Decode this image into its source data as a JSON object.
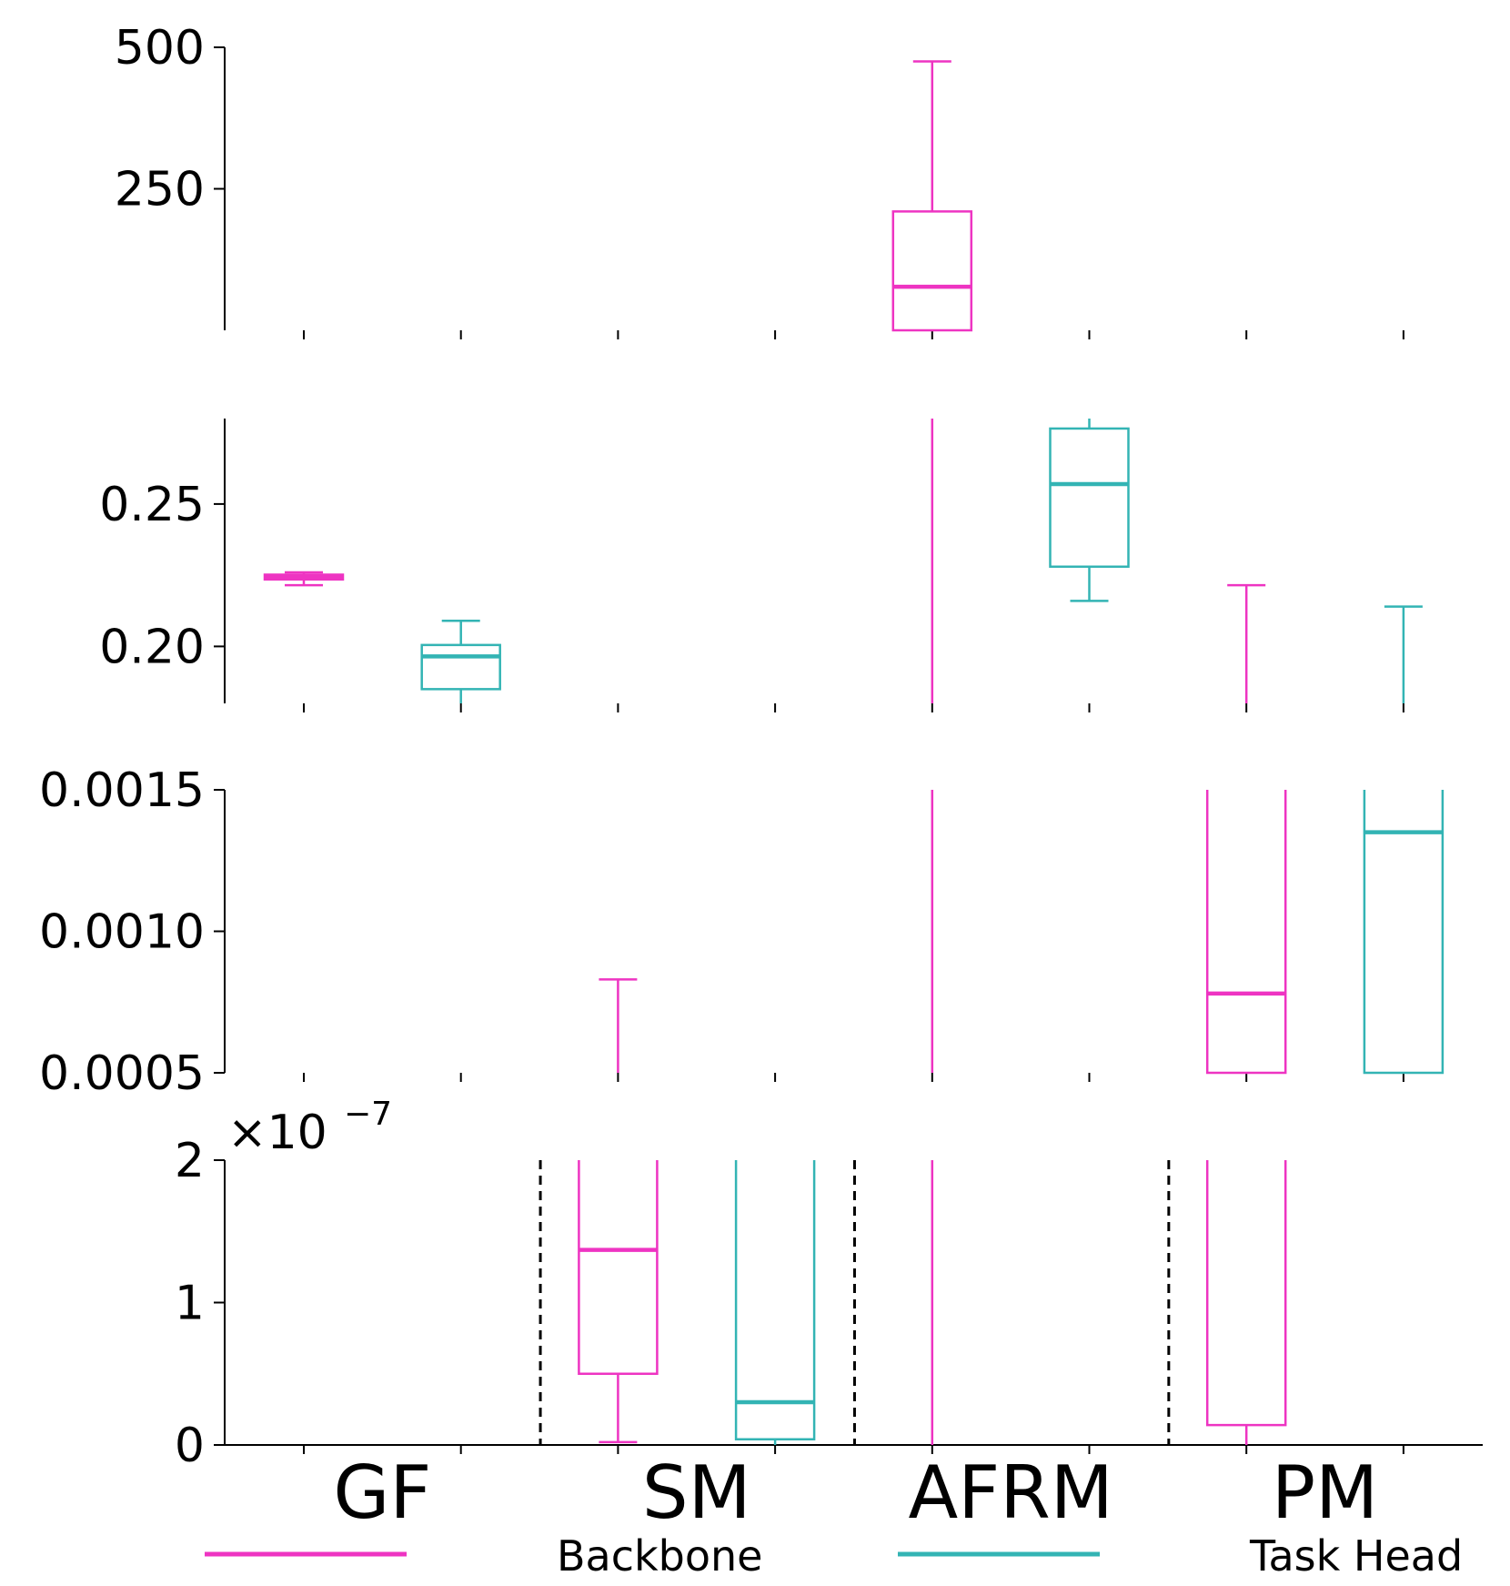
{
  "chart_data": {
    "type": "box",
    "categories": [
      "GF",
      "SM",
      "AFRM",
      "PM"
    ],
    "series_names": [
      "Backbone",
      "Task Head"
    ],
    "colors": {
      "Backbone": "#ee34c2",
      "Task Head": "#33b4b4"
    },
    "legend": {
      "placement": "bottom",
      "entries": [
        {
          "name": "Backbone",
          "label": "Backbone",
          "color": "#ee34c2"
        },
        {
          "name": "Task Head",
          "label": "Task Head",
          "color": "#33b4b4"
        }
      ]
    },
    "panels": [
      {
        "name": "panel-1",
        "ylim": [
          0,
          500
        ],
        "yticks": [
          250,
          500
        ],
        "ytick_labels": [
          "250",
          "500"
        ],
        "boxes": [
          {
            "category": "AFRM",
            "series": "Backbone",
            "whislo": 0,
            "q1": 0,
            "med": 77,
            "q3": 210,
            "whishi": 475
          }
        ]
      },
      {
        "name": "panel-2",
        "ylim": [
          0.18,
          0.28
        ],
        "yticks": [
          0.2,
          0.25
        ],
        "ytick_labels": [
          "0.20",
          "0.25"
        ],
        "boxes": [
          {
            "category": "GF",
            "series": "Backbone",
            "whislo": 0.2215,
            "q1": 0.2235,
            "med": 0.2245,
            "q3": 0.2252,
            "whishi": 0.226
          },
          {
            "category": "GF",
            "series": "Task Head",
            "whislo": 0.18,
            "q1": 0.185,
            "med": 0.1965,
            "q3": 0.2005,
            "whishi": 0.209
          },
          {
            "category": "AFRM",
            "series": "Backbone",
            "whislo": 0.18,
            "q1": 0.18,
            "med": 0.18,
            "q3": 0.28,
            "whishi": 0.28
          },
          {
            "category": "AFRM",
            "series": "Task Head",
            "whislo": 0.216,
            "q1": 0.228,
            "med": 0.257,
            "q3": 0.2765,
            "whishi": 0.28
          },
          {
            "category": "PM",
            "series": "Backbone",
            "whislo": 0.18,
            "q1": 0.18,
            "med": 0.18,
            "q3": 0.18,
            "whishi": 0.2215
          },
          {
            "category": "PM",
            "series": "Task Head",
            "whislo": 0.18,
            "q1": 0.18,
            "med": 0.18,
            "q3": 0.18,
            "whishi": 0.214
          }
        ]
      },
      {
        "name": "panel-3",
        "ylim": [
          0.0005,
          0.0015
        ],
        "yticks": [
          0.0005,
          0.001,
          0.0015
        ],
        "ytick_labels": [
          "0.0005",
          "0.0010",
          "0.0015"
        ],
        "boxes": [
          {
            "category": "SM",
            "series": "Backbone",
            "whislo": 0.0005,
            "q1": 0.0005,
            "med": 0.0005,
            "q3": 0.0005,
            "whishi": 0.00083
          },
          {
            "category": "AFRM",
            "series": "Backbone",
            "whislo": 0.0005,
            "q1": 0.0005,
            "med": 0.0005,
            "q3": 0.0015,
            "whishi": 0.0015
          },
          {
            "category": "PM",
            "series": "Backbone",
            "whislo": 0.0005,
            "q1": 0.0005,
            "med": 0.00078,
            "q3": 0.0015,
            "whishi": 0.0015
          },
          {
            "category": "PM",
            "series": "Task Head",
            "whislo": 0.0005,
            "q1": 0.0005,
            "med": 0.00135,
            "q3": 0.0015,
            "whishi": 0.0015
          }
        ]
      },
      {
        "name": "panel-4",
        "ylim": [
          0,
          2
        ],
        "yticks": [
          0,
          1,
          2
        ],
        "ytick_labels": [
          "0",
          "1",
          "2"
        ],
        "scale_label": "×10",
        "scale_exponent": "−7",
        "show_category_labels": true,
        "separators_after": [
          "GF",
          "SM",
          "AFRM"
        ],
        "boxes": [
          {
            "category": "SM",
            "series": "Backbone",
            "whislo": 0.02,
            "q1": 0.5,
            "med": 1.37,
            "q3": 2,
            "whishi": 2
          },
          {
            "category": "SM",
            "series": "Task Head",
            "whislo": 0,
            "q1": 0.04,
            "med": 0.3,
            "q3": 2,
            "whishi": 2
          },
          {
            "category": "AFRM",
            "series": "Backbone",
            "whislo": 0,
            "q1": 0,
            "med": 0,
            "q3": 2,
            "whishi": 2
          },
          {
            "category": "PM",
            "series": "Backbone",
            "whislo": 0,
            "q1": 0.14,
            "med": 2,
            "q3": 2,
            "whishi": 2
          }
        ]
      }
    ]
  }
}
